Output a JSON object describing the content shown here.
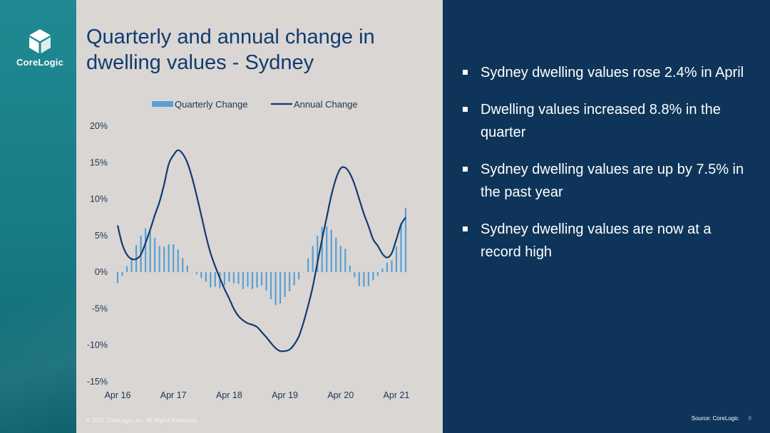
{
  "brand": {
    "name": "CoreLogic"
  },
  "slide": {
    "title": "Quarterly and annual change in dwelling values - Sydney",
    "copyright": "© 2021 CoreLogic, Inc. All Rights Reserved.",
    "source": "Source: CoreLogic",
    "page_number": "8"
  },
  "bullets": [
    "Sydney dwelling values rose 2.4% in April",
    "Dwelling values increased 8.8% in the quarter",
    "Sydney dwelling values are up by 7.5% in the past year",
    "Sydney dwelling values are now at a record high"
  ],
  "colors": {
    "bars": "#5a9fd4",
    "line": "#123b6e",
    "title": "#123b6e",
    "panel_right": "#0e3559",
    "panel_chart": "#d9d6d4",
    "sidebar": "#1a7f8a"
  },
  "chart_data": {
    "type": "bar+line",
    "ylim": [
      -15,
      20
    ],
    "yticks": [
      "20%",
      "15%",
      "10%",
      "5%",
      "0%",
      "-5%",
      "-10%",
      "-15%"
    ],
    "ytick_values": [
      20,
      15,
      10,
      5,
      0,
      -5,
      -10,
      -15
    ],
    "xtick_labels": [
      "Apr 16",
      "Apr 17",
      "Apr 18",
      "Apr 19",
      "Apr 20",
      "Apr 21"
    ],
    "xtick_index": [
      0,
      12,
      24,
      36,
      48,
      60
    ],
    "legend": {
      "position": "top",
      "bar_label": "Quarterly Change",
      "line_label": "Annual Change"
    },
    "series": [
      {
        "name": "Quarterly Change",
        "kind": "bar",
        "values": [
          -1.5,
          -0.5,
          0.8,
          2.0,
          3.7,
          5.0,
          6.0,
          5.6,
          4.7,
          3.6,
          3.5,
          3.8,
          3.8,
          3.1,
          1.9,
          0.9,
          0.0,
          -0.3,
          -0.8,
          -1.3,
          -2.1,
          -2.0,
          -2.2,
          -1.8,
          -1.3,
          -1.5,
          -1.6,
          -2.3,
          -2.0,
          -2.3,
          -2.1,
          -1.8,
          -2.5,
          -3.7,
          -4.5,
          -4.3,
          -3.4,
          -2.6,
          -1.8,
          -1.0,
          0.0,
          1.9,
          3.6,
          5.0,
          6.2,
          6.3,
          5.8,
          4.7,
          3.6,
          3.2,
          0.9,
          -0.7,
          -1.9,
          -2.0,
          -1.9,
          -1.1,
          -0.5,
          0.5,
          1.3,
          1.6,
          3.5,
          6.7,
          8.8
        ]
      },
      {
        "name": "Annual Change",
        "kind": "line",
        "values": [
          6.4,
          3.8,
          2.4,
          1.8,
          1.8,
          2.4,
          4.0,
          5.8,
          7.8,
          9.6,
          12.0,
          14.8,
          16.0,
          16.7,
          16.2,
          15.0,
          13.0,
          10.5,
          7.8,
          5.0,
          2.6,
          0.8,
          -0.8,
          -2.3,
          -3.6,
          -5.0,
          -6.0,
          -6.6,
          -7.0,
          -7.2,
          -7.5,
          -8.2,
          -8.9,
          -9.7,
          -10.4,
          -10.8,
          -10.8,
          -10.6,
          -9.9,
          -8.8,
          -6.9,
          -4.6,
          -2.0,
          1.3,
          4.5,
          7.5,
          10.5,
          12.8,
          14.2,
          14.3,
          13.5,
          12.0,
          10.0,
          8.0,
          6.3,
          4.5,
          3.6,
          2.5,
          2.0,
          2.6,
          4.5,
          6.5,
          7.5
        ]
      }
    ]
  }
}
